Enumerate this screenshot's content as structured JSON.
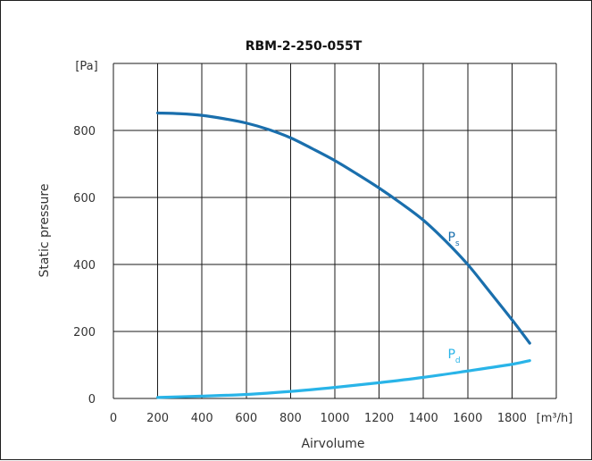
{
  "chart_data": {
    "type": "line",
    "title": "RBM-2-250-055T",
    "ylabel": "Static pressure",
    "xlabel": "Airvolume",
    "y_unit": "[Pa]",
    "x_unit": "[m³/h]",
    "xlim": [
      0,
      2000
    ],
    "ylim": [
      0,
      1000
    ],
    "grid": true,
    "x_ticks": [
      0,
      200,
      400,
      600,
      800,
      1000,
      1200,
      1400,
      1600,
      1800
    ],
    "y_ticks": [
      0,
      200,
      400,
      600,
      800
    ],
    "series": [
      {
        "name": "Ps",
        "label_main": "P",
        "label_sub": "s",
        "color": "#1a6fad",
        "label_at": [
          1510,
          470
        ],
        "x": [
          200,
          300,
          400,
          500,
          600,
          700,
          800,
          900,
          1000,
          1100,
          1200,
          1300,
          1400,
          1500,
          1600,
          1700,
          1800,
          1880
        ],
        "y": [
          852,
          850,
          845,
          835,
          822,
          803,
          778,
          745,
          710,
          670,
          628,
          582,
          532,
          470,
          400,
          318,
          235,
          165
        ]
      },
      {
        "name": "Pd",
        "label_main": "P",
        "label_sub": "d",
        "color": "#29b4e8",
        "label_at": [
          1510,
          120
        ],
        "x": [
          200,
          400,
          600,
          800,
          1000,
          1200,
          1400,
          1600,
          1800,
          1880
        ],
        "y": [
          3,
          7,
          12,
          21,
          33,
          47,
          63,
          82,
          102,
          113
        ]
      }
    ]
  }
}
